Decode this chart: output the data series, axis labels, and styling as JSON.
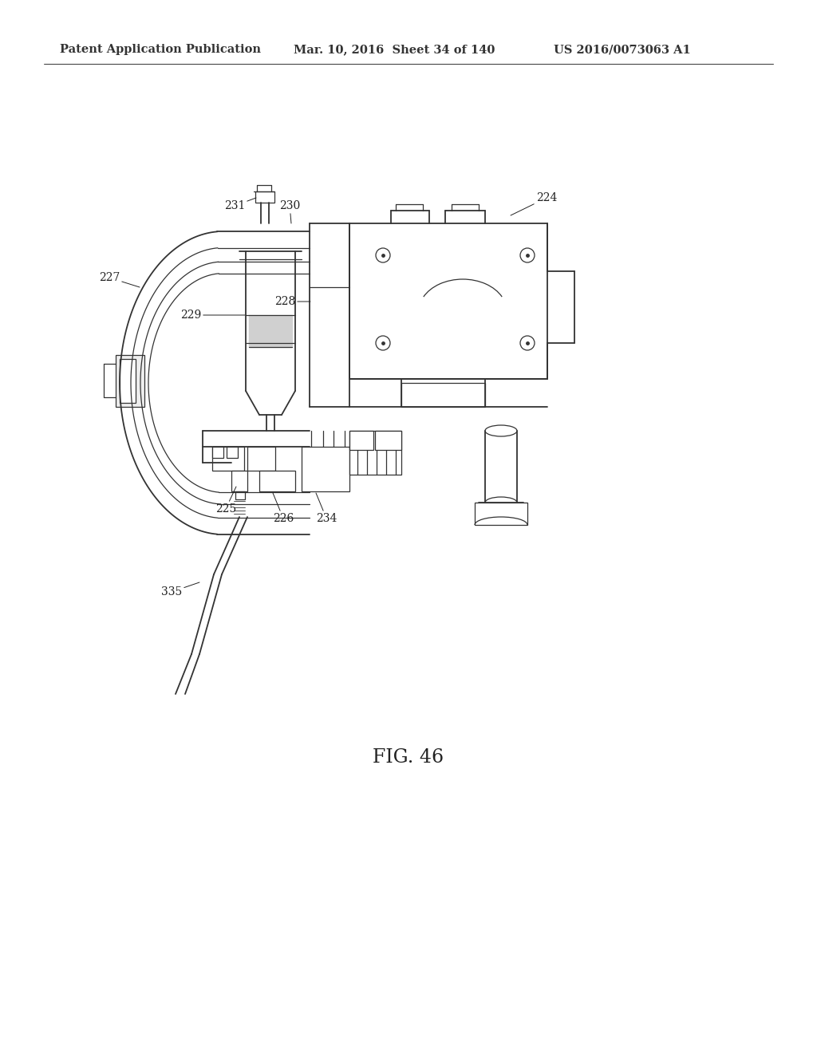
{
  "background_color": "#ffffff",
  "title_line1": "Patent Application Publication",
  "title_line2": "Mar. 10, 2016  Sheet 34 of 140",
  "title_line3": "US 2016/0073063 A1",
  "figure_label": "FIG. 46",
  "line_color": "#333333",
  "label_color": "#222222",
  "fig_label_fontsize": 17,
  "header_fontsize": 10.5,
  "label_fontsize": 10
}
